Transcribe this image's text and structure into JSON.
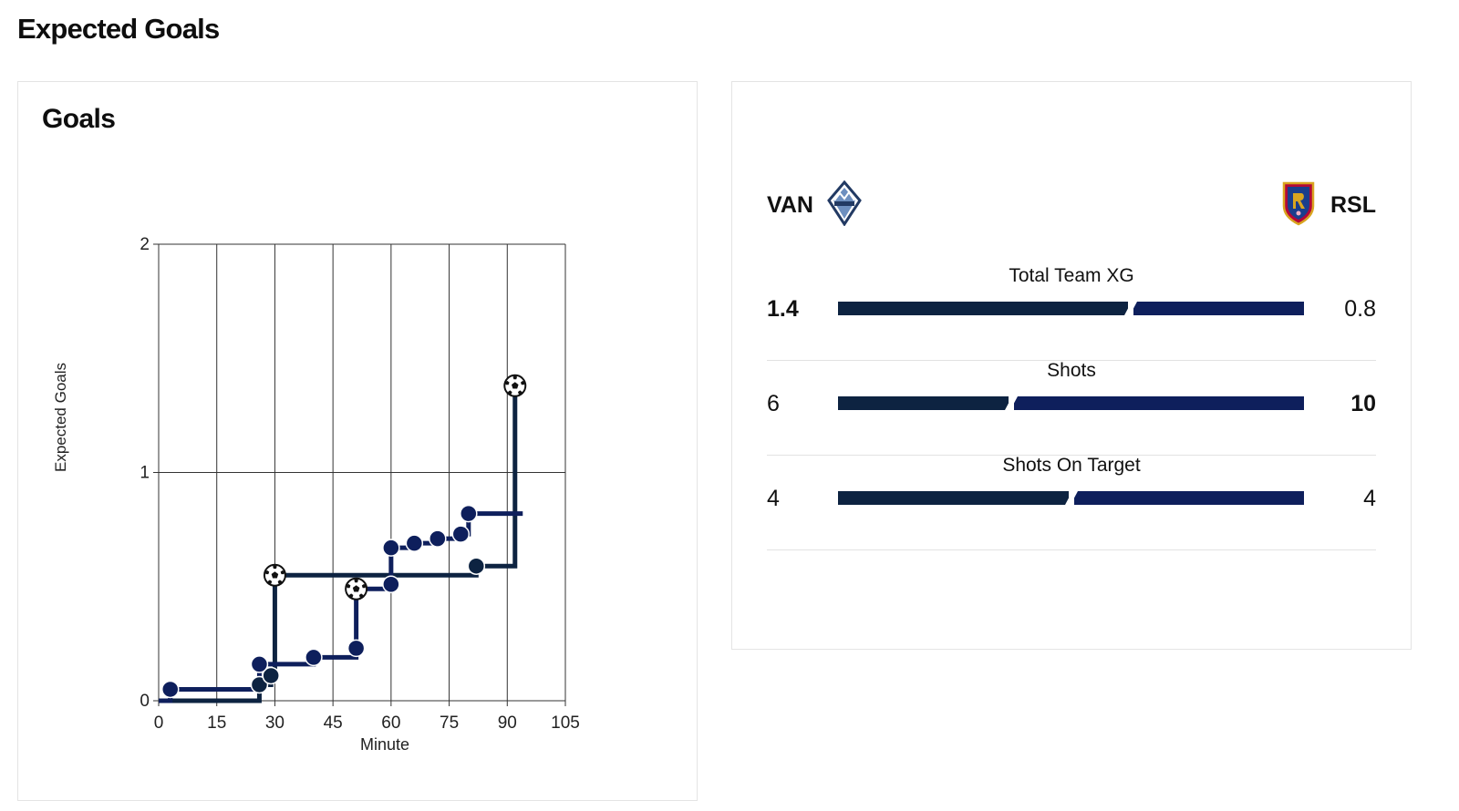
{
  "header": {
    "title": "Expected Goals"
  },
  "chart_card": {
    "title": "Goals"
  },
  "chart_data": {
    "type": "line",
    "xlabel": "Minute",
    "ylabel": "Expected Goals",
    "xlim": [
      0,
      105
    ],
    "ylim": [
      0,
      2
    ],
    "xticks": [
      0,
      15,
      30,
      45,
      60,
      75,
      90,
      105
    ],
    "yticks": [
      0,
      1,
      2
    ],
    "grid": true,
    "series": [
      {
        "color": "#0d2341",
        "points": [
          {
            "x": 0,
            "y": 0
          },
          {
            "x": 26,
            "y": 0.0
          },
          {
            "x": 26,
            "y": 0.07,
            "shot": true
          },
          {
            "x": 29,
            "y": 0.11,
            "shot": true
          },
          {
            "x": 30,
            "y": 0.55,
            "goal": true
          },
          {
            "x": 82,
            "y": 0.55
          },
          {
            "x": 82,
            "y": 0.59,
            "shot": true
          },
          {
            "x": 92,
            "y": 0.59
          },
          {
            "x": 92,
            "y": 1.38,
            "goal": true
          }
        ]
      },
      {
        "color": "#0e1f5c",
        "points": [
          {
            "x": 0,
            "y": 0.0
          },
          {
            "x": 3,
            "y": 0.05,
            "shot": true
          },
          {
            "x": 25,
            "y": 0.05
          },
          {
            "x": 26,
            "y": 0.16,
            "shot": true
          },
          {
            "x": 40,
            "y": 0.19,
            "shot": true
          },
          {
            "x": 51,
            "y": 0.23,
            "shot": true
          },
          {
            "x": 51,
            "y": 0.49,
            "goal": true
          },
          {
            "x": 60,
            "y": 0.51,
            "shot": true
          },
          {
            "x": 60,
            "y": 0.67,
            "shot": true
          },
          {
            "x": 66,
            "y": 0.69,
            "shot": true
          },
          {
            "x": 72,
            "y": 0.71,
            "shot": true
          },
          {
            "x": 78,
            "y": 0.73,
            "shot": true
          },
          {
            "x": 80,
            "y": 0.82,
            "shot": true
          },
          {
            "x": 94,
            "y": 0.82
          }
        ]
      }
    ]
  },
  "stats": {
    "home": {
      "abbr": "VAN",
      "crest": "whitecaps-crest",
      "color": "#0d2341"
    },
    "away": {
      "abbr": "RSL",
      "crest": "real-salt-lake-crest",
      "color": "#0e1f5c"
    },
    "rows": [
      {
        "label": "Total Team XG",
        "home": "1.4",
        "away": "0.8",
        "home_share": 0.63,
        "leader": "home"
      },
      {
        "label": "Shots",
        "home": "6",
        "away": "10",
        "home_share": 0.37,
        "leader": "away"
      },
      {
        "label": "Shots On Target",
        "home": "4",
        "away": "4",
        "home_share": 0.5,
        "leader": "none"
      }
    ]
  }
}
